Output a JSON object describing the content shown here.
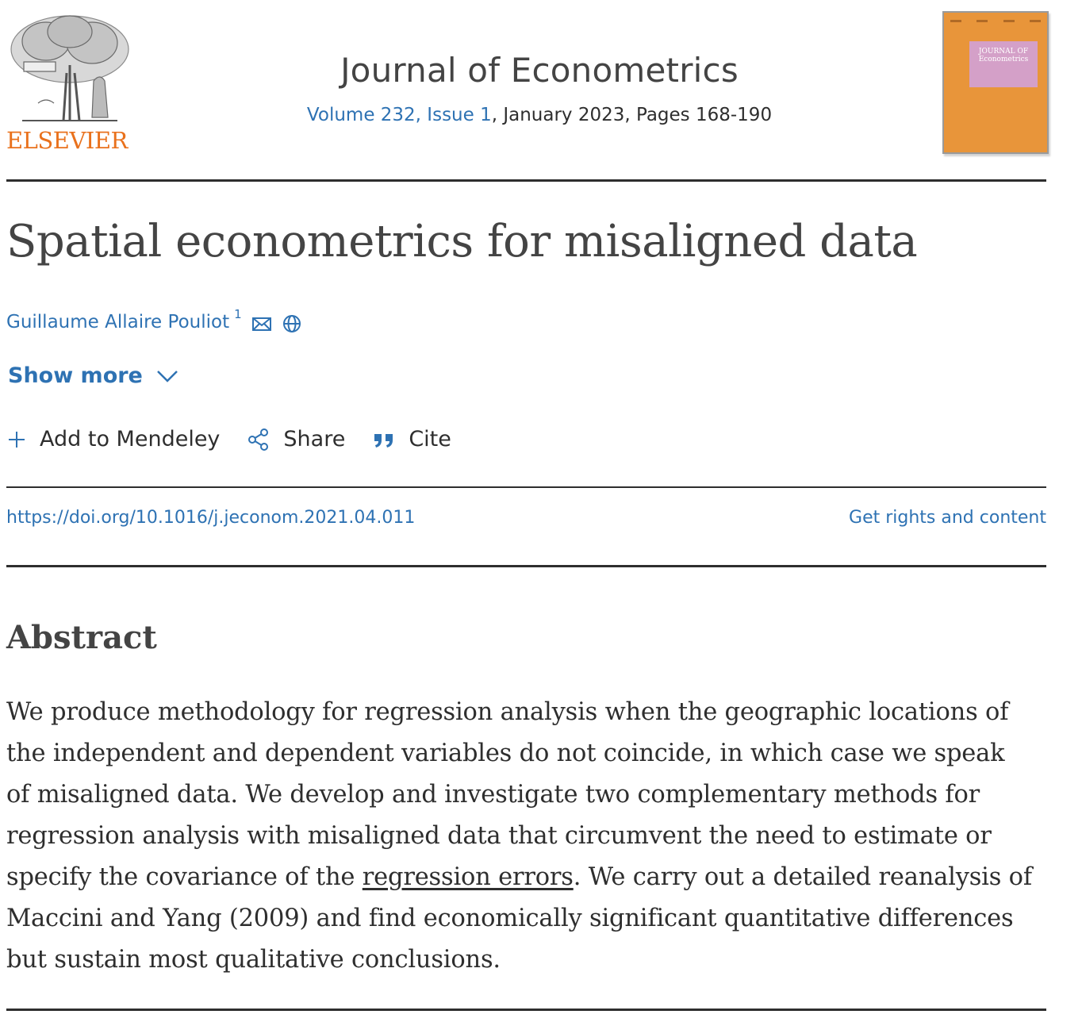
{
  "header": {
    "publisher_wordmark": "ELSEVIER",
    "journal_title": "Journal of Econometrics",
    "volume_issue_link": "Volume 232, Issue 1",
    "issue_rest": ", January 2023, Pages 168-190",
    "cover": {
      "label_line1": "JOURNAL OF",
      "label_line2": "Econometrics",
      "background_color": "#e8953a",
      "label_color": "#d4a0c8"
    }
  },
  "article": {
    "title": "Spatial econometrics for misaligned data",
    "author": {
      "name": "Guillaume Allaire Pouliot",
      "affiliation_marker": "1",
      "icons": [
        "envelope-icon",
        "globe-icon"
      ]
    },
    "show_more_label": "Show more"
  },
  "actions": {
    "mendeley_label": "Add to Mendeley",
    "share_label": "Share",
    "cite_label": "Cite"
  },
  "links": {
    "doi": "https://doi.org/10.1016/j.jeconom.2021.04.011",
    "rights": "Get rights and content"
  },
  "abstract": {
    "heading": "Abstract",
    "line1": "We produce methodology for regression analysis when the geographic locations of",
    "line2": "the independent and dependent variables do not coincide, in which case we speak",
    "line3": "of misaligned data. We develop and investigate two complementary methods for",
    "line4": "regression analysis with misaligned data that circumvent the need to estimate or",
    "line5_pre": "specify the covariance of the ",
    "line5_term": "regression errors",
    "line5_post": ". We carry out a detailed reanalysis of",
    "line6": "Maccini and Yang (2009) and find economically significant quantitative differences",
    "line7": "but sustain most qualitative conclusions."
  },
  "colors": {
    "link": "#2e72b3",
    "brand_orange": "#e9711c",
    "text": "#2e2e2e"
  }
}
